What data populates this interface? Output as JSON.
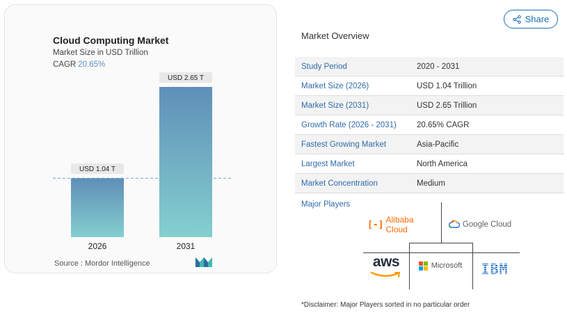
{
  "chart_card": {
    "title": "Cloud Computing Market",
    "subtitle": "Market Size in USD Trillion",
    "cagr_label": "CAGR",
    "cagr_value": "20.65%",
    "source": "Source :  Mordor Intelligence",
    "logo": "mordor-intelligence-logo"
  },
  "chart_data": {
    "type": "bar",
    "categories": [
      "2026",
      "2031"
    ],
    "values": [
      1.04,
      2.65
    ],
    "data_labels": [
      "USD 1.04 T",
      "USD 2.65 T"
    ],
    "title": "Cloud Computing Market",
    "subtitle": "Market Size in USD Trillion",
    "xlabel": "",
    "ylabel": "",
    "ylim": [
      0,
      2.65
    ],
    "grid": false,
    "reference_line": 1.04,
    "colors": {
      "bar_top": "#5f8fb8",
      "bar_bottom": "#84cfcf",
      "reference_line": "#6ea4c8",
      "label_bg": "#e8e8e8"
    }
  },
  "share": {
    "label": "Share",
    "icon": "share-icon",
    "color": "#1c6fb5"
  },
  "overview": {
    "heading": "Market Overview",
    "rows": [
      {
        "key": "Study Period",
        "value": "2020 - 2031"
      },
      {
        "key": "Market Size (2026)",
        "value": "USD 1.04 Trillion"
      },
      {
        "key": "Market Size (2031)",
        "value": "USD 2.65 Trillion"
      },
      {
        "key": "Growth Rate (2026 - 2031)",
        "value": "20.65% CAGR"
      },
      {
        "key": "Fastest Growing Market",
        "value": "Asia-Pacific"
      },
      {
        "key": "Largest Market",
        "value": "North America"
      },
      {
        "key": "Market Concentration",
        "value": "Medium"
      }
    ]
  },
  "players": {
    "label": "Major Players",
    "alibaba": {
      "bracket": "[-]",
      "name": "Alibaba Cloud"
    },
    "google": {
      "name": "Google Cloud"
    },
    "aws": {
      "name": "aws"
    },
    "microsoft": {
      "name": "Microsoft"
    },
    "ibm": {
      "name": "IBM"
    }
  },
  "disclaimer": "*Disclaimer: Major Players sorted in no particular order"
}
